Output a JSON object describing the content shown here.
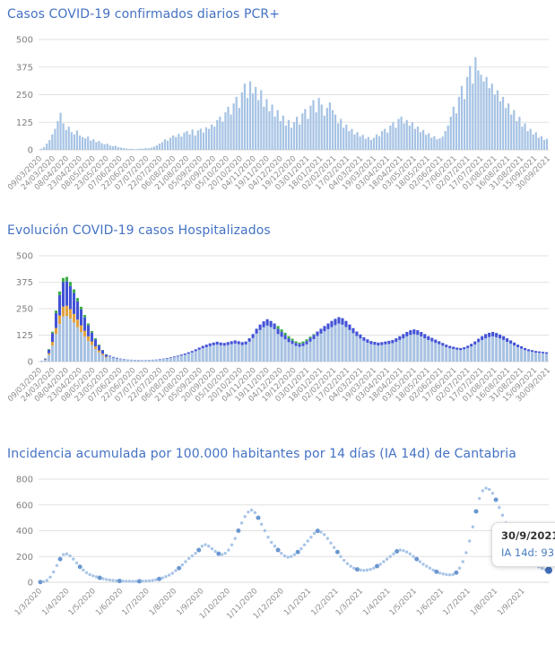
{
  "chart_data": [
    {
      "type": "bar",
      "title": "Casos COVID-19 confirmados diarios PCR+",
      "ylabel": "",
      "xlabel": "",
      "ylim": [
        0,
        500
      ],
      "yticks": [
        0,
        125,
        250,
        375,
        500
      ],
      "grid": true,
      "legend": null,
      "bar_color": "#a6c3e4",
      "xticklabels": [
        "09/03/2020",
        "24/03/2020",
        "08/04/2020",
        "23/04/2020",
        "08/05/2020",
        "23/05/2020",
        "07/06/2020",
        "22/06/2020",
        "07/07/2020",
        "22/07/2020",
        "06/08/2020",
        "21/08/2020",
        "05/09/2020",
        "20/09/2020",
        "05/10/2020",
        "20/10/2020",
        "04/11/2020",
        "19/11/2020",
        "04/12/2020",
        "19/12/2020",
        "03/01/2021",
        "18/01/2021",
        "02/02/2021",
        "17/02/2021",
        "04/03/2021",
        "19/03/2021",
        "03/04/2021",
        "18/04/2021",
        "03/05/2021",
        "18/05/2021",
        "02/06/2021",
        "17/06/2021",
        "02/07/2021",
        "17/07/2021",
        "01/08/2021",
        "16/08/2021",
        "31/08/2021",
        "15/09/2021",
        "30/09/2021"
      ],
      "values": [
        5,
        12,
        28,
        45,
        70,
        95,
        130,
        168,
        120,
        90,
        105,
        80,
        70,
        88,
        65,
        58,
        52,
        60,
        42,
        48,
        35,
        40,
        30,
        25,
        28,
        20,
        16,
        18,
        12,
        10,
        8,
        6,
        4,
        5,
        3,
        4,
        6,
        5,
        8,
        7,
        10,
        14,
        20,
        28,
        35,
        48,
        42,
        55,
        65,
        58,
        72,
        60,
        78,
        85,
        70,
        92,
        65,
        88,
        96,
        78,
        102,
        95,
        115,
        105,
        135,
        150,
        128,
        170,
        195,
        160,
        210,
        240,
        190,
        260,
        300,
        235,
        310,
        255,
        285,
        225,
        270,
        195,
        230,
        175,
        205,
        150,
        180,
        130,
        155,
        110,
        135,
        100,
        125,
        150,
        115,
        165,
        185,
        140,
        200,
        225,
        170,
        235,
        205,
        155,
        190,
        215,
        180,
        160,
        120,
        140,
        100,
        115,
        85,
        95,
        70,
        80,
        60,
        68,
        50,
        58,
        45,
        55,
        70,
        62,
        85,
        95,
        78,
        110,
        125,
        100,
        140,
        150,
        120,
        135,
        110,
        125,
        95,
        105,
        80,
        90,
        68,
        75,
        55,
        62,
        48,
        52,
        60,
        85,
        110,
        150,
        195,
        165,
        240,
        290,
        230,
        330,
        380,
        300,
        420,
        360,
        340,
        310,
        330,
        280,
        300,
        250,
        270,
        220,
        240,
        190,
        210,
        160,
        180,
        130,
        150,
        105,
        120,
        85,
        95,
        70,
        80,
        55,
        62,
        45,
        50
      ]
    },
    {
      "type": "bar",
      "subtype": "stacked",
      "title": "Evolución COVID-19 casos  Hospitalizados",
      "ylabel": "",
      "xlabel": "",
      "ylim": [
        0,
        500
      ],
      "yticks": [
        0,
        125,
        250,
        375,
        500
      ],
      "grid": true,
      "legend": null,
      "xticklabels": [
        "09/03/2020",
        "24/03/2020",
        "08/04/2020",
        "23/04/2020",
        "08/05/2020",
        "23/05/2020",
        "07/06/2020",
        "22/06/2020",
        "07/07/2020",
        "22/07/2020",
        "06/08/2020",
        "21/08/2020",
        "05/09/2020",
        "20/09/2020",
        "05/10/2020",
        "20/10/2020",
        "04/11/2020",
        "19/11/2020",
        "04/12/2020",
        "19/12/2020",
        "03/01/2021",
        "18/01/2021",
        "02/02/2021",
        "17/02/2021",
        "04/03/2021",
        "19/03/2021",
        "03/04/2021",
        "18/04/2021",
        "03/05/2021",
        "18/05/2021",
        "02/06/2021",
        "17/06/2021",
        "02/07/2021",
        "17/07/2021",
        "01/08/2021",
        "16/08/2021",
        "31/08/2021",
        "15/09/2021",
        "30/09/2021"
      ],
      "series": [
        {
          "name": "serie-celeste",
          "color": "#a8c2e2",
          "values": [
            2,
            8,
            32,
            76,
            130,
            178,
            213,
            216,
            203,
            184,
            162,
            140,
            119,
            97,
            78,
            59,
            43,
            30,
            19,
            24,
            19,
            15,
            12,
            10,
            9,
            8,
            7,
            7,
            6,
            6,
            7,
            8,
            9,
            10,
            12,
            14,
            17,
            20,
            24,
            28,
            32,
            37,
            43,
            49,
            56,
            63,
            68,
            73,
            77,
            80,
            77,
            75,
            78,
            82,
            85,
            82,
            78,
            81,
            94,
            111,
            132,
            149,
            162,
            170,
            163,
            153,
            130,
            117,
            105,
            92,
            83,
            74,
            70,
            73,
            81,
            94,
            106,
            121,
            132,
            143,
            153,
            163,
            172,
            179,
            174,
            163,
            149,
            134,
            121,
            109,
            98,
            89,
            82,
            79,
            76,
            78,
            81,
            83,
            87,
            93,
            102,
            110,
            119,
            126,
            129,
            126,
            119,
            110,
            102,
            95,
            88,
            82,
            75,
            68,
            63,
            59,
            56,
            54,
            58,
            64,
            71,
            81,
            92,
            102,
            110,
            116,
            119,
            115,
            109,
            102,
            93,
            85,
            76,
            68,
            61,
            54,
            49,
            46,
            42,
            41,
            39,
            37
          ]
        },
        {
          "name": "serie-naranja",
          "color": "#e2a23e",
          "values": [
            0,
            2,
            7,
            17,
            29,
            40,
            47,
            48,
            45,
            41,
            36,
            31,
            26,
            22,
            17,
            13,
            10,
            7,
            4,
            0,
            0,
            0,
            0,
            0,
            0,
            0,
            0,
            0,
            0,
            0,
            0,
            0,
            0,
            0,
            0,
            0,
            0,
            0,
            0,
            0,
            0,
            0,
            0,
            0,
            0,
            0,
            0,
            0,
            0,
            0,
            0,
            0,
            0,
            0,
            0,
            0,
            0,
            0,
            0,
            0,
            0,
            0,
            0,
            0,
            0,
            0,
            0,
            0,
            0,
            0,
            0,
            0,
            0,
            0,
            0,
            0,
            0,
            0,
            0,
            0,
            0,
            0,
            0,
            0,
            0,
            0,
            0,
            0,
            0,
            0,
            0,
            0,
            0,
            0,
            0,
            0,
            0,
            0,
            0,
            0,
            0,
            0,
            0,
            0,
            0,
            0,
            0,
            0,
            0,
            0,
            0,
            0,
            0,
            0,
            0,
            0,
            0,
            0,
            0,
            0,
            0,
            0,
            0,
            0,
            0,
            0,
            0,
            0,
            0,
            0,
            0,
            0,
            0,
            0,
            0,
            0,
            0,
            0,
            0,
            0,
            0,
            0
          ]
        },
        {
          "name": "serie-azul",
          "color": "#4252d6",
          "values": [
            1,
            4,
            17,
            41,
            70,
            96,
            115,
            116,
            109,
            99,
            87,
            75,
            64,
            52,
            42,
            32,
            23,
            16,
            10,
            4,
            3,
            3,
            2,
            2,
            1,
            1,
            1,
            1,
            1,
            1,
            1,
            1,
            1,
            2,
            2,
            3,
            3,
            4,
            4,
            5,
            6,
            7,
            7,
            9,
            10,
            11,
            12,
            13,
            13,
            14,
            13,
            13,
            14,
            14,
            15,
            14,
            14,
            14,
            16,
            19,
            23,
            26,
            28,
            30,
            29,
            27,
            25,
            23,
            20,
            18,
            16,
            14,
            13,
            14,
            16,
            18,
            20,
            21,
            23,
            25,
            27,
            29,
            30,
            31,
            31,
            29,
            26,
            24,
            21,
            19,
            17,
            16,
            15,
            14,
            14,
            14,
            14,
            15,
            15,
            17,
            18,
            20,
            21,
            22,
            23,
            22,
            21,
            20,
            18,
            17,
            16,
            14,
            13,
            12,
            11,
            11,
            10,
            10,
            10,
            11,
            13,
            14,
            16,
            18,
            20,
            20,
            21,
            20,
            19,
            18,
            17,
            15,
            14,
            12,
            11,
            10,
            9,
            8,
            8,
            7,
            7,
            7
          ]
        },
        {
          "name": "serie-verde",
          "color": "#3eae4a",
          "values": [
            0,
            1,
            3,
            7,
            12,
            17,
            20,
            20,
            19,
            17,
            15,
            13,
            11,
            9,
            7,
            6,
            4,
            2,
            2,
            0,
            0,
            0,
            0,
            0,
            0,
            0,
            0,
            0,
            0,
            0,
            0,
            0,
            0,
            0,
            0,
            0,
            0,
            0,
            0,
            0,
            0,
            0,
            0,
            0,
            0,
            0,
            0,
            0,
            0,
            0,
            0,
            0,
            0,
            0,
            0,
            0,
            0,
            0,
            0,
            0,
            0,
            0,
            0,
            0,
            0,
            0,
            13,
            12,
            11,
            10,
            9,
            8,
            7,
            8,
            8,
            6,
            4,
            0,
            0,
            0,
            0,
            0,
            0,
            0,
            0,
            0,
            0,
            0,
            0,
            0,
            0,
            0,
            0,
            0,
            0,
            0,
            0,
            0,
            0,
            0,
            0,
            0,
            0,
            0,
            0,
            0,
            0,
            0,
            0,
            0,
            0,
            0,
            0,
            0,
            0,
            0,
            0,
            0,
            0,
            0,
            0,
            0,
            0,
            0,
            0,
            0,
            0,
            0,
            0,
            0,
            0,
            0,
            0,
            0,
            0,
            0,
            0,
            0,
            0,
            0,
            0,
            0
          ]
        }
      ]
    },
    {
      "type": "scatter",
      "subtype": "dotted-line",
      "title": "Incidencia acumulada por 100.000 habitantes por 14 días (IA 14d) de Cantabria",
      "ylabel": "",
      "xlabel": "",
      "ylim": [
        0,
        800
      ],
      "yticks": [
        0,
        200,
        400,
        600,
        800
      ],
      "grid": true,
      "legend": null,
      "point_color": "#a9c5e7",
      "accent_point_color": "#6b97cf",
      "last_point_color": "#3f6db8",
      "xdomain": [
        "1/3/2020",
        "30/9/2021"
      ],
      "xticklabels": [
        "1/3/2020",
        "1/4/2020",
        "1/5/2020",
        "1/6/2020",
        "1/7/2020",
        "1/8/2020",
        "1/9/2020",
        "1/10/2020",
        "1/11/2020",
        "1/12/2020",
        "1/1/2021",
        "1/2/2021",
        "1/3/2021",
        "1/4/2021",
        "1/5/2021",
        "1/6/2021",
        "1/7/2021",
        "1/8/2021",
        "1/9/2021"
      ],
      "values": [
        2,
        5,
        15,
        40,
        80,
        130,
        180,
        215,
        220,
        205,
        180,
        150,
        120,
        95,
        75,
        60,
        50,
        42,
        35,
        28,
        22,
        18,
        15,
        12,
        10,
        9,
        8,
        8,
        7,
        7,
        8,
        9,
        10,
        12,
        15,
        20,
        26,
        34,
        44,
        56,
        70,
        90,
        110,
        135,
        160,
        185,
        205,
        225,
        250,
        280,
        292,
        280,
        260,
        240,
        222,
        215,
        225,
        250,
        290,
        340,
        400,
        460,
        510,
        545,
        560,
        540,
        500,
        450,
        400,
        350,
        310,
        280,
        250,
        225,
        205,
        195,
        200,
        215,
        235,
        260,
        290,
        320,
        350,
        380,
        398,
        390,
        370,
        340,
        305,
        270,
        235,
        200,
        170,
        145,
        125,
        110,
        100,
        95,
        92,
        95,
        100,
        110,
        125,
        140,
        160,
        180,
        200,
        220,
        240,
        250,
        245,
        235,
        220,
        200,
        180,
        160,
        140,
        125,
        110,
        95,
        82,
        72,
        65,
        60,
        58,
        60,
        75,
        110,
        160,
        230,
        320,
        430,
        550,
        650,
        710,
        730,
        720,
        690,
        640,
        580,
        520,
        460,
        400,
        350,
        300,
        260,
        225,
        195,
        170,
        150,
        135,
        120,
        108,
        97,
        93
      ],
      "tooltip": {
        "date": "30/9/2021",
        "text": "IA 14d: 93"
      }
    }
  ],
  "colors": {
    "title": "#4472c4",
    "grid": "#e2e2e2",
    "axis_label": "#8c8c8c",
    "background": "#ffffff"
  }
}
